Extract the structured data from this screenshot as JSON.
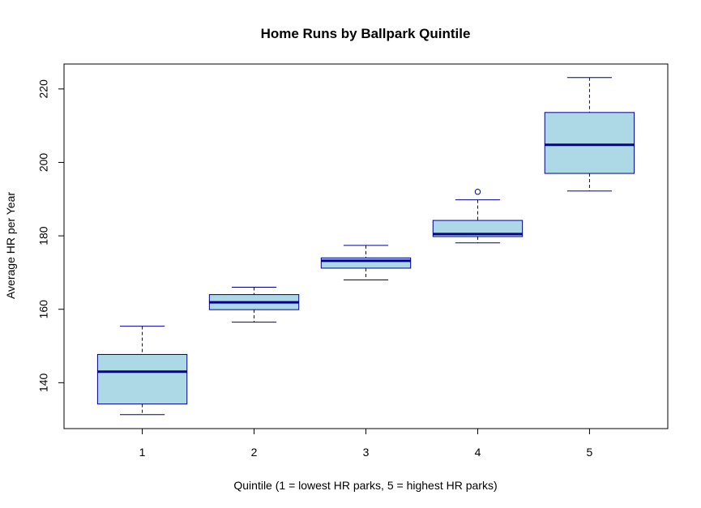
{
  "chart_data": {
    "type": "boxplot",
    "title": "Home Runs by Ballpark Quintile",
    "xlabel": "Quintile (1 = lowest HR parks, 5 = highest HR parks)",
    "ylabel": "Average HR per Year",
    "categories": [
      "1",
      "2",
      "3",
      "4",
      "5"
    ],
    "ylim": [
      127.5,
      226.8
    ],
    "yticks": [
      140,
      160,
      180,
      200,
      220
    ],
    "boxes": [
      {
        "category": "1",
        "whisker_low": 131.3,
        "q1": 134.2,
        "median": 143.0,
        "q3": 147.7,
        "whisker_high": 155.4,
        "outliers": []
      },
      {
        "category": "2",
        "whisker_low": 156.5,
        "q1": 159.9,
        "median": 161.9,
        "q3": 164.0,
        "whisker_high": 166.0,
        "outliers": []
      },
      {
        "category": "3",
        "whisker_low": 168.0,
        "q1": 171.2,
        "median": 173.2,
        "q3": 174.0,
        "whisker_high": 177.4,
        "outliers": []
      },
      {
        "category": "4",
        "whisker_low": 178.1,
        "q1": 179.8,
        "median": 180.5,
        "q3": 184.2,
        "whisker_high": 189.8,
        "outliers": [
          192.0
        ]
      },
      {
        "category": "5",
        "whisker_low": 192.2,
        "q1": 197.0,
        "median": 204.8,
        "q3": 213.6,
        "whisker_high": 223.1,
        "outliers": []
      }
    ],
    "grid": false,
    "legend": "none",
    "colors": {
      "box_fill": "#add8e6",
      "box_border": "#00008b",
      "median": "#00008b",
      "frame": "#000000"
    }
  }
}
